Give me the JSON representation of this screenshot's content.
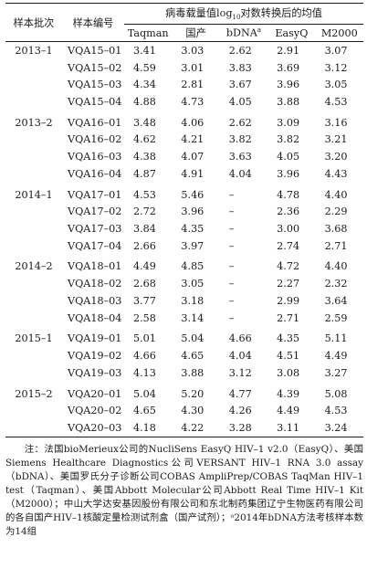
{
  "table": {
    "headers": {
      "batch": "样本批次",
      "id": "样本编号",
      "group_prefix": "病毒载量值log",
      "group_sub": "10",
      "group_suffix": "对数转换后的均值",
      "columns": [
        "Taqman",
        "国产",
        "bDNA",
        "EasyQ",
        "M2000"
      ],
      "bdna_mark": "a"
    },
    "groups": [
      {
        "batch": "2013–1",
        "rows": [
          [
            "VQA15–01",
            "3.41",
            "3.03",
            "2.62",
            "2.91",
            "3.07"
          ],
          [
            "VQA15–02",
            "4.59",
            "3.01",
            "3.83",
            "3.69",
            "3.12"
          ],
          [
            "VQA15–03",
            "4.34",
            "2.81",
            "3.67",
            "3.96",
            "3.05"
          ],
          [
            "VQA15–04",
            "4.88",
            "4.73",
            "4.05",
            "3.88",
            "4.53"
          ]
        ]
      },
      {
        "batch": "2013–2",
        "rows": [
          [
            "VQA16–01",
            "3.48",
            "4.06",
            "2.62",
            "3.09",
            "3.16"
          ],
          [
            "VQA16–02",
            "4.62",
            "4.21",
            "3.82",
            "3.82",
            "3.21"
          ],
          [
            "VQA16–03",
            "4.38",
            "4.07",
            "3.63",
            "4.05",
            "3.20"
          ],
          [
            "VQA16–04",
            "4.87",
            "4.91",
            "4.04",
            "3.96",
            "4.43"
          ]
        ]
      },
      {
        "batch": "2014–1",
        "rows": [
          [
            "VQA17–01",
            "4.53",
            "5.46",
            "–",
            "4.78",
            "4.40"
          ],
          [
            "VQA17–02",
            "2.72",
            "3.96",
            "–",
            "2.36",
            "2.29"
          ],
          [
            "VQA17–03",
            "3.84",
            "4.35",
            "–",
            "3.00",
            "3.68"
          ],
          [
            "VQA17–04",
            "2.66",
            "3.97",
            "–",
            "2.74",
            "2.71"
          ]
        ]
      },
      {
        "batch": "2014–2",
        "rows": [
          [
            "VQA18–01",
            "4.49",
            "4.85",
            "–",
            "4.72",
            "4.40"
          ],
          [
            "VQA18–02",
            "2.68",
            "3.05",
            "–",
            "2.27",
            "2.32"
          ],
          [
            "VQA18–03",
            "3.77",
            "3.18",
            "–",
            "2.99",
            "3.64"
          ],
          [
            "VQA18–04",
            "2.58",
            "3.14",
            "–",
            "2.71",
            "2.59"
          ]
        ]
      },
      {
        "batch": "2015–1",
        "rows": [
          [
            "VQA19–01",
            "5.01",
            "5.04",
            "4.66",
            "4.35",
            "5.11"
          ],
          [
            "VQA19–02",
            "4.66",
            "4.65",
            "4.04",
            "4.51",
            "4.49"
          ],
          [
            "VQA19–03",
            "4.13",
            "3.88",
            "3.12",
            "3.08",
            "3.27"
          ]
        ]
      },
      {
        "batch": "2015–2",
        "rows": [
          [
            "VQA20–01",
            "5.04",
            "5.20",
            "4.77",
            "4.39",
            "5.08"
          ],
          [
            "VQA20–02",
            "4.65",
            "4.30",
            "4.26",
            "4.49",
            "4.53"
          ],
          [
            "VQA20–03",
            "4.18",
            "4.22",
            "3.28",
            "3.11",
            "3.24"
          ]
        ]
      }
    ]
  },
  "note": "注：法国bioMerieux公司的NucliSens EasyQ HIV–1 v2.0（EasyQ）、美国Siemens Healthcare Diagnostics公司VERSANT HIV–1 RNA 3.0 assay（bDNA）、美国罗氏分子诊断公司COBAS AmpliPrep/COBAS TaqMan HIV–1 test（Taqman）、美国Abbott Molecular公司Abbott Real Time HIV–1 Kit（M2000）；中山大学达安基因股份有限公司和东北制药集团辽宁生物医药有限公司的各自国产HIV–1核酸定量检测试剂盒（国产试剂）；ᵃ2014年bDNA方法考核样本数为14组"
}
